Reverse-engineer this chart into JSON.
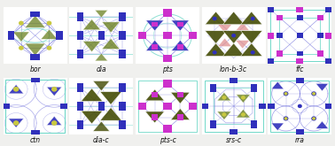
{
  "top_labels": [
    "bor",
    "dia",
    "pts",
    "lon-b-3c",
    "ffc"
  ],
  "bottom_labels": [
    "ctn",
    "dia-c",
    "pts-c",
    "srs-c",
    "rra"
  ],
  "bg_color": "#f0f0ee",
  "label_fontsize": 5.5,
  "label_color": "#111111",
  "lc": "#7070dd",
  "ac": "#70d8c8",
  "bc": "#3030bb",
  "mc": "#cc30cc",
  "gc": "#6a8020",
  "yc": "#c8c840",
  "pk": "#e09090",
  "dk": "#404800"
}
